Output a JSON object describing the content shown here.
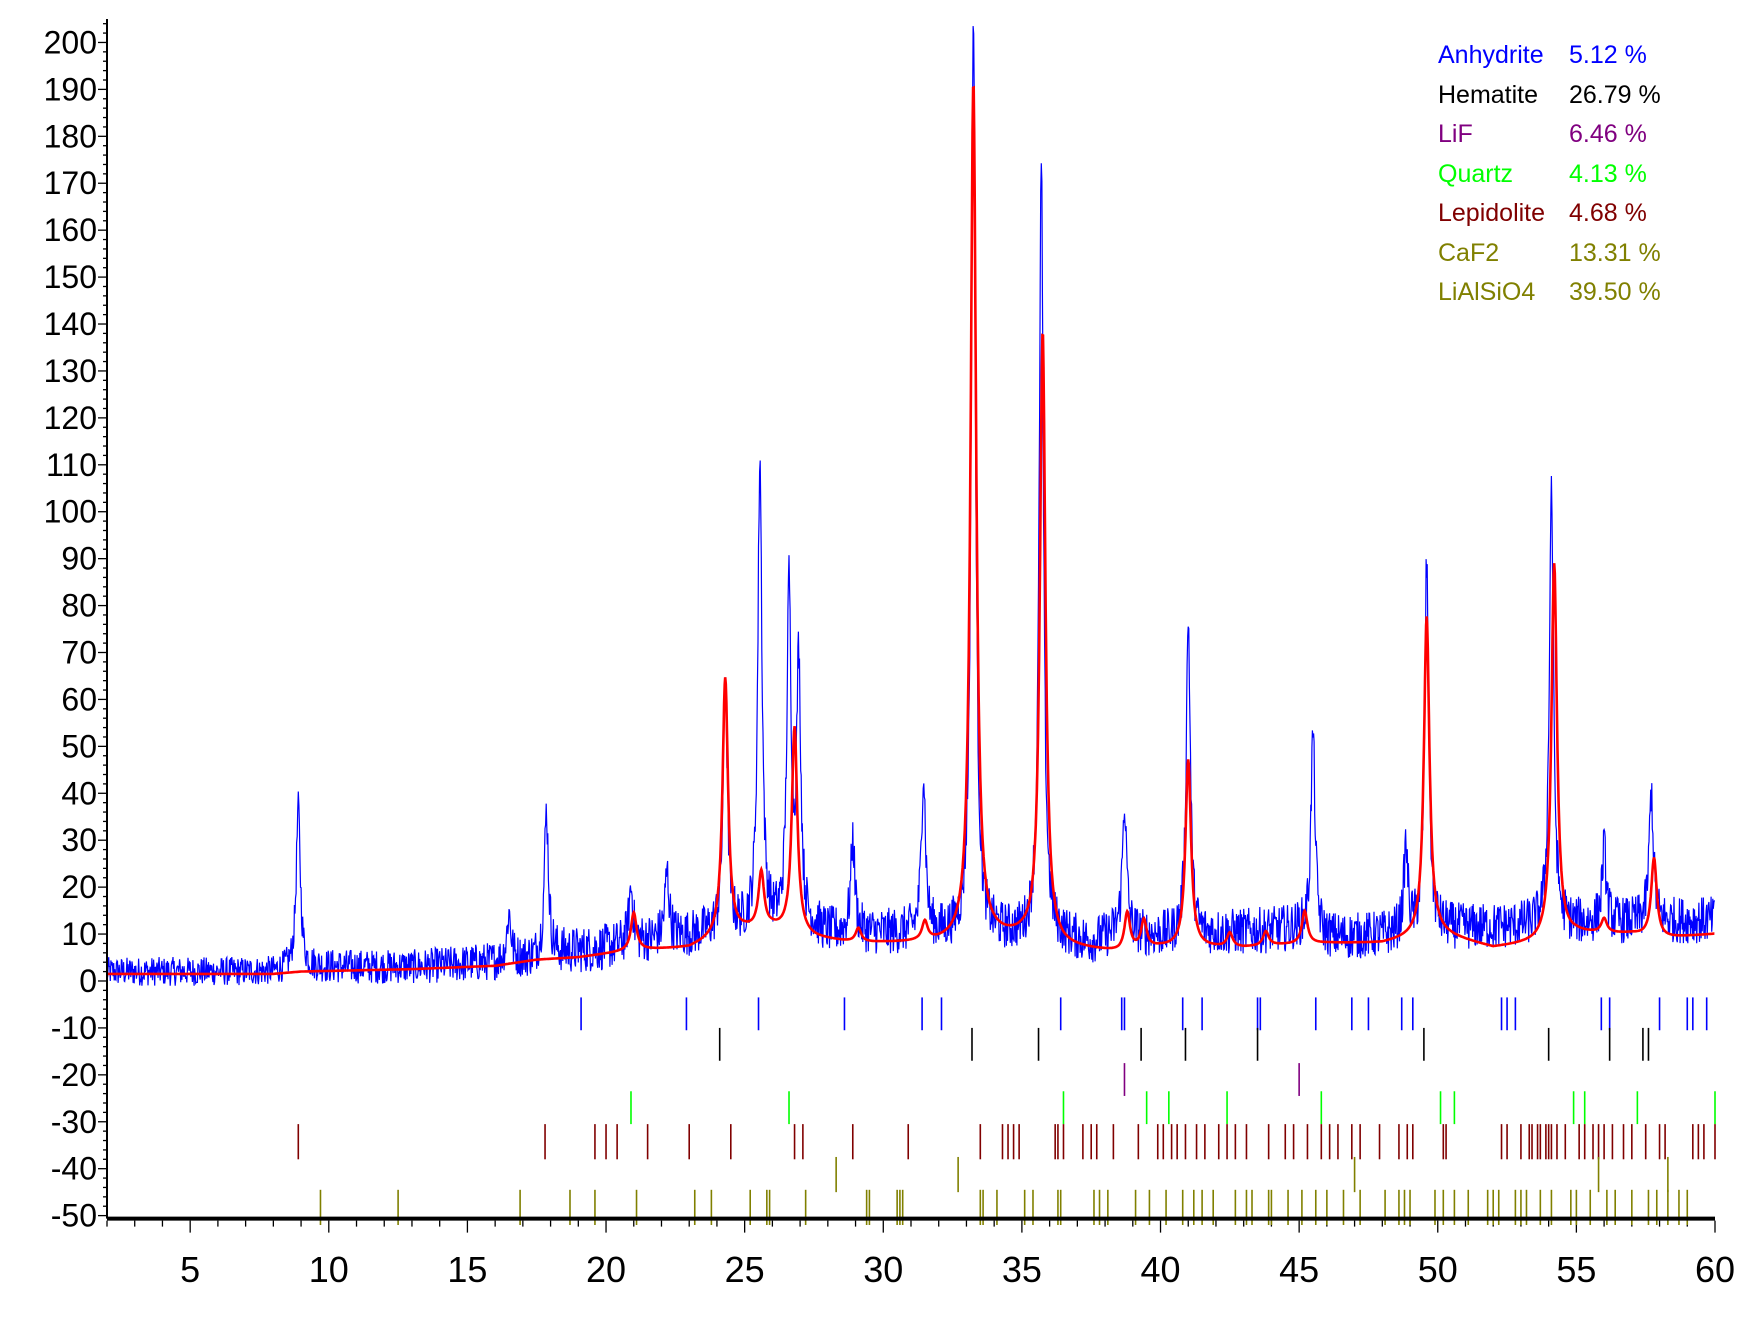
{
  "chart_data": {
    "type": "line",
    "title": "",
    "xlabel": "",
    "ylabel": "",
    "xlim": [
      2,
      60
    ],
    "ylim": [
      -50,
      200
    ],
    "grid": false,
    "legend_position": "top-right",
    "x_ticks": [
      5,
      10,
      15,
      20,
      25,
      30,
      35,
      40,
      45,
      50,
      55,
      60
    ],
    "x_tick_labels": [
      "5",
      "10",
      "15",
      "20",
      "25",
      "30",
      "35",
      "40",
      "45",
      "50",
      "55",
      "60"
    ],
    "y_ticks": [
      -50,
      -40,
      -30,
      -20,
      -10,
      0,
      10,
      20,
      30,
      40,
      50,
      60,
      70,
      80,
      90,
      100,
      110,
      120,
      130,
      140,
      150,
      160,
      170,
      180,
      190,
      200
    ],
    "y_tick_labels": [
      "-50",
      "-40",
      "-30",
      "-20",
      "-10",
      "0",
      "10",
      "20",
      "30",
      "40",
      "50",
      "60",
      "70",
      "80",
      "90",
      "100",
      "110",
      "120",
      "130",
      "140",
      "150",
      "160",
      "170",
      "180",
      "190",
      "200"
    ],
    "observed": {
      "color": "#0000ff",
      "background_points": [
        [
          2,
          2
        ],
        [
          8,
          2
        ],
        [
          9,
          3
        ],
        [
          13,
          3
        ],
        [
          16,
          4
        ],
        [
          17.6,
          5
        ],
        [
          18.5,
          6
        ],
        [
          20,
          7
        ],
        [
          21,
          8
        ],
        [
          22,
          9
        ],
        [
          23.5,
          10
        ],
        [
          25,
          11
        ],
        [
          27.5,
          11
        ],
        [
          28,
          10
        ],
        [
          33,
          10
        ],
        [
          34,
          10
        ],
        [
          36.5,
          9
        ],
        [
          37.5,
          8
        ],
        [
          38.5,
          10
        ],
        [
          41,
          9
        ],
        [
          42,
          10
        ],
        [
          45,
          11
        ],
        [
          46,
          9
        ],
        [
          49,
          10
        ],
        [
          50,
          11
        ],
        [
          55,
          12
        ],
        [
          60,
          13
        ]
      ],
      "noise_amplitude": 5,
      "peaks": [
        {
          "x": 8.9,
          "height": 34
        },
        {
          "x": 16.5,
          "height": 10
        },
        {
          "x": 17.85,
          "height": 31
        },
        {
          "x": 20.9,
          "height": 12
        },
        {
          "x": 22.2,
          "height": 14
        },
        {
          "x": 24.3,
          "height": 54
        },
        {
          "x": 25.55,
          "height": 100
        },
        {
          "x": 26.6,
          "height": 72
        },
        {
          "x": 26.95,
          "height": 56
        },
        {
          "x": 28.9,
          "height": 20
        },
        {
          "x": 31.45,
          "height": 34
        },
        {
          "x": 33.25,
          "height": 195
        },
        {
          "x": 35.7,
          "height": 164
        },
        {
          "x": 38.7,
          "height": 28
        },
        {
          "x": 41.0,
          "height": 68
        },
        {
          "x": 45.5,
          "height": 43
        },
        {
          "x": 48.85,
          "height": 18
        },
        {
          "x": 49.6,
          "height": 78
        },
        {
          "x": 54.1,
          "height": 94
        },
        {
          "x": 56.0,
          "height": 16
        },
        {
          "x": 57.7,
          "height": 28
        }
      ]
    },
    "calculated": {
      "color": "#ff0000",
      "background_points": [
        [
          2,
          1.5
        ],
        [
          8,
          1.5
        ],
        [
          9,
          2
        ],
        [
          13,
          2.5
        ],
        [
          16,
          3.2
        ],
        [
          17.5,
          4.5
        ],
        [
          19,
          5
        ],
        [
          21,
          6.5
        ],
        [
          23,
          7
        ],
        [
          24,
          9
        ],
        [
          25,
          10.5
        ],
        [
          26,
          11
        ],
        [
          27.5,
          9
        ],
        [
          29,
          8
        ],
        [
          31,
          8
        ],
        [
          33,
          8
        ],
        [
          34,
          9
        ],
        [
          35,
          9
        ],
        [
          36.5,
          7
        ],
        [
          38.5,
          6
        ],
        [
          40,
          7
        ],
        [
          41.5,
          7
        ],
        [
          43,
          7
        ],
        [
          44,
          7.5
        ],
        [
          46,
          8
        ],
        [
          48,
          8
        ],
        [
          49,
          9
        ],
        [
          50,
          10
        ],
        [
          52,
          7
        ],
        [
          53.5,
          8
        ],
        [
          55,
          10
        ],
        [
          57,
          10
        ],
        [
          58,
          9
        ],
        [
          60,
          10
        ]
      ],
      "peaks": [
        {
          "x": 21.0,
          "height": 8
        },
        {
          "x": 24.3,
          "height": 55
        },
        {
          "x": 25.6,
          "height": 12
        },
        {
          "x": 26.8,
          "height": 44
        },
        {
          "x": 29.1,
          "height": 3
        },
        {
          "x": 31.5,
          "height": 4
        },
        {
          "x": 33.25,
          "height": 183
        },
        {
          "x": 35.75,
          "height": 130
        },
        {
          "x": 38.8,
          "height": 8
        },
        {
          "x": 39.4,
          "height": 6
        },
        {
          "x": 41.0,
          "height": 40
        },
        {
          "x": 42.5,
          "height": 3
        },
        {
          "x": 43.8,
          "height": 3
        },
        {
          "x": 45.2,
          "height": 7
        },
        {
          "x": 49.6,
          "height": 68
        },
        {
          "x": 54.2,
          "height": 80
        },
        {
          "x": 56.0,
          "height": 3
        },
        {
          "x": 57.8,
          "height": 17
        }
      ]
    },
    "phases": [
      {
        "name": "Anhydrite",
        "percent": "5.12 %",
        "color": "#0000ff",
        "tick_y_top": -3.5,
        "tick_y_bottom": -10.5,
        "positions": [
          19.1,
          22.9,
          25.5,
          28.6,
          31.4,
          32.1,
          36.4,
          38.6,
          38.7,
          40.8,
          41.5,
          43.5,
          43.6,
          45.6,
          46.9,
          47.5,
          48.7,
          49.1,
          52.3,
          52.5,
          52.8,
          55.9,
          56.2,
          58.0,
          59.0,
          59.2,
          59.7
        ]
      },
      {
        "name": "Hematite",
        "percent": "26.79 %",
        "color": "#000000",
        "tick_y_top": -10,
        "tick_y_bottom": -17,
        "positions": [
          24.1,
          33.2,
          35.6,
          39.3,
          40.9,
          43.5,
          49.5,
          54.0,
          56.2,
          57.4,
          57.6
        ]
      },
      {
        "name": "LiF",
        "percent": "6.46 %",
        "color": "#800080",
        "tick_y_top": -17.5,
        "tick_y_bottom": -24.5,
        "positions": [
          38.7,
          45.0
        ]
      },
      {
        "name": "Quartz",
        "percent": "4.13 %",
        "color": "#00ff00",
        "tick_y_top": -23.5,
        "tick_y_bottom": -30.5,
        "positions": [
          20.9,
          26.6,
          36.5,
          39.5,
          40.3,
          42.4,
          45.8,
          50.1,
          50.6,
          54.9,
          55.3,
          57.2,
          60.0
        ]
      },
      {
        "name": "Lepidolite",
        "percent": "4.68 %",
        "color": "#800000",
        "tick_y_top": -30.5,
        "tick_y_bottom": -38,
        "positions": [
          8.9,
          17.8,
          19.6,
          20.0,
          20.4,
          21.5,
          23.0,
          24.5,
          26.8,
          27.1,
          28.9,
          30.9,
          33.5,
          34.3,
          34.5,
          34.7,
          34.9,
          36.2,
          36.3,
          36.5,
          37.2,
          37.5,
          37.7,
          38.3,
          39.2,
          39.9,
          40.1,
          40.4,
          40.6,
          40.9,
          41.3,
          41.6,
          42.1,
          42.4,
          42.7,
          43.1,
          43.9,
          44.5,
          44.8,
          45.3,
          45.8,
          46.1,
          46.4,
          46.9,
          47.2,
          47.9,
          48.6,
          48.9,
          49.1,
          50.2,
          50.3,
          52.3,
          52.5,
          53.0,
          53.3,
          53.4,
          53.6,
          53.7,
          53.9,
          54.0,
          54.1,
          54.3,
          54.6,
          55.1,
          55.3,
          55.6,
          55.8,
          56.0,
          56.3,
          56.7,
          57.0,
          57.5,
          58.0,
          58.2,
          59.2,
          59.4,
          59.6,
          60.0
        ]
      },
      {
        "name": "CaF2",
        "percent": "13.31 %",
        "color": "#808000",
        "tick_y_top": -37.5,
        "tick_y_bottom": -45,
        "positions": [
          28.3,
          32.7,
          47.0,
          55.8,
          58.3
        ]
      },
      {
        "name": "LiAlSiO4",
        "percent": "39.50 %",
        "color": "#808000",
        "tick_y_top": -44.5,
        "tick_y_bottom": -52,
        "positions": [
          9.7,
          12.5,
          16.9,
          18.7,
          19.6,
          21.1,
          23.2,
          23.8,
          25.2,
          25.8,
          25.9,
          27.2,
          29.4,
          29.5,
          30.5,
          30.6,
          30.7,
          33.5,
          33.6,
          34.1,
          35.1,
          35.4,
          36.3,
          36.4,
          37.6,
          37.8,
          38.1,
          39.1,
          39.6,
          40.2,
          40.8,
          41.2,
          41.5,
          41.9,
          42.7,
          43.1,
          43.3,
          43.9,
          44.0,
          44.6,
          45.1,
          45.6,
          46.0,
          46.6,
          47.2,
          48.1,
          48.6,
          48.8,
          49.0,
          49.9,
          50.2,
          50.6,
          51.1,
          51.8,
          52.0,
          52.2,
          52.8,
          53.0,
          53.2,
          53.7,
          54.1,
          54.8,
          55.0,
          55.5,
          56.1,
          56.4,
          57.0,
          57.6,
          57.9,
          58.3,
          58.7,
          59.0
        ]
      }
    ]
  }
}
